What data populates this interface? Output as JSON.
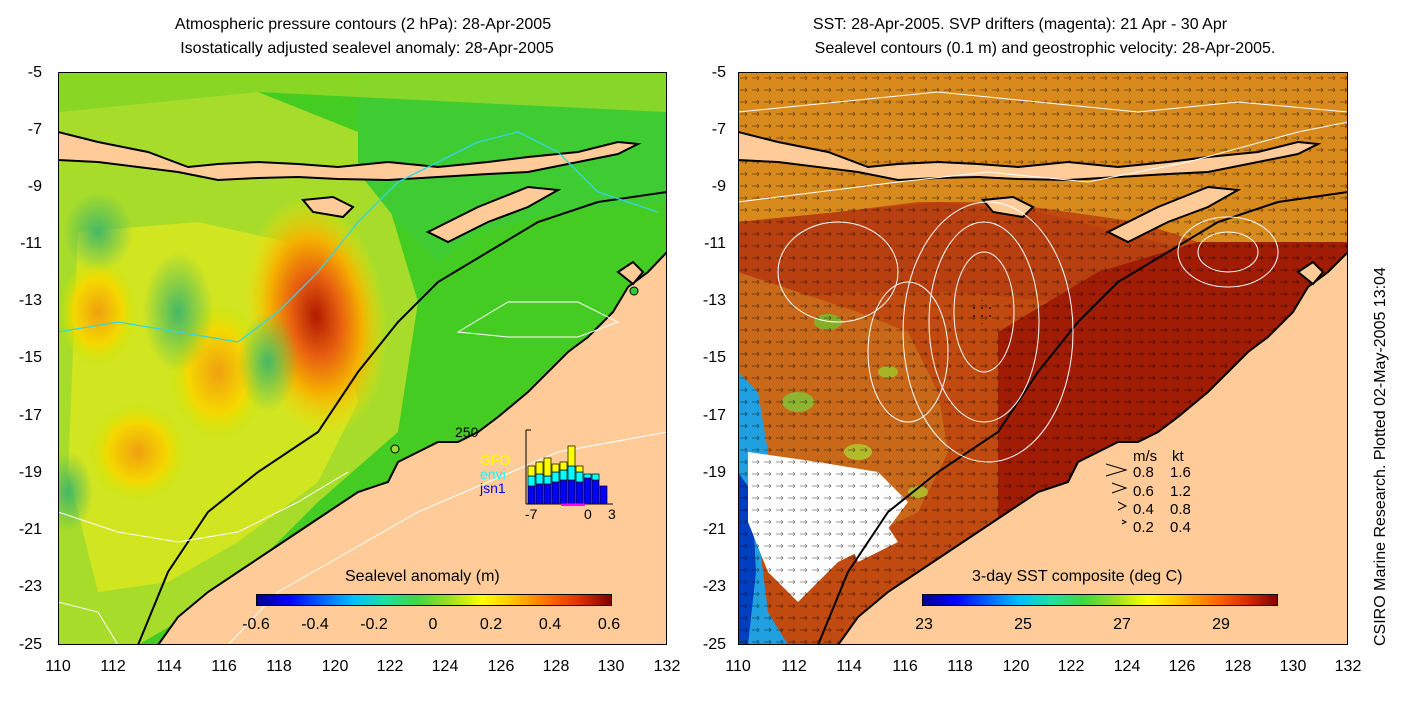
{
  "left_panel": {
    "title_line1": "Atmospheric pressure contours (2 hPa): 28-Apr-2005",
    "title_line2": "Isostatically adjusted sealevel anomaly: 28-Apr-2005",
    "y_ticks": [
      "-5",
      "-7",
      "-9",
      "-11",
      "-13",
      "-15",
      "-17",
      "-19",
      "-21",
      "-23",
      "-25"
    ],
    "x_ticks": [
      "110",
      "112",
      "114",
      "116",
      "118",
      "120",
      "122",
      "124",
      "126",
      "128",
      "130",
      "132"
    ],
    "colorbar_title": "Sealevel anomaly (m)",
    "colorbar_ticks": [
      "-0.6",
      "-0.4",
      "-0.2",
      "0",
      "0.2",
      "0.4",
      "0.6"
    ],
    "inset": {
      "y_max_label": "250",
      "x_labels": [
        "-7",
        "0",
        "3"
      ],
      "legend": [
        {
          "label": "GFO",
          "color": "#ffff00"
        },
        {
          "label": "envi",
          "color": "#00ffff"
        },
        {
          "label": "jsn1",
          "color": "#0000ff"
        }
      ]
    }
  },
  "right_panel": {
    "title_line1": "SST: 28-Apr-2005. SVP drifters (magenta): 21 Apr - 30 Apr",
    "title_line2": "Sealevel contours (0.1 m) and geostrophic velocity: 28-Apr-2005.",
    "y_ticks": [
      "-5",
      "-7",
      "-9",
      "-11",
      "-13",
      "-15",
      "-17",
      "-19",
      "-21",
      "-23",
      "-25"
    ],
    "x_ticks": [
      "110",
      "112",
      "114",
      "116",
      "118",
      "120",
      "122",
      "124",
      "126",
      "128",
      "130",
      "132"
    ],
    "colorbar_title": "3-day SST composite (deg C)",
    "colorbar_ticks": [
      "23",
      "25",
      "27",
      "29"
    ],
    "velocity_legend": {
      "header_ms": "m/s",
      "header_kt": "kt",
      "rows": [
        {
          "ms": "0.8",
          "kt": "1.6"
        },
        {
          "ms": "0.6",
          "kt": "1.2"
        },
        {
          "ms": "0.4",
          "kt": "0.8"
        },
        {
          "ms": "0.2",
          "kt": "0.4"
        }
      ]
    }
  },
  "side_credit": "CSIRO Marine Research. Plotted 02-May-2005 13:04",
  "colors": {
    "land": "#ffcc99",
    "ocean_green": "#33cc33",
    "sst_dark": "#aa2200",
    "coast": "#000000"
  }
}
